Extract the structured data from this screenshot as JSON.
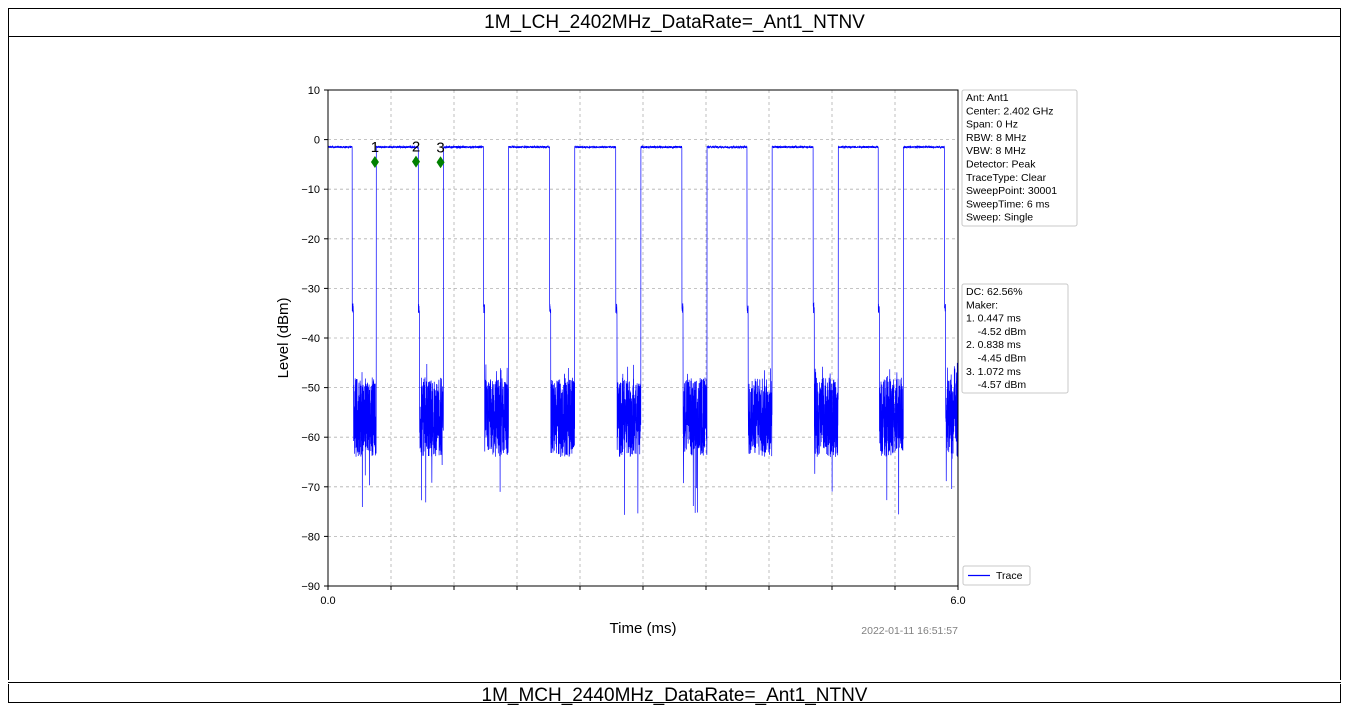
{
  "page": {
    "title": "1M_LCH_2402MHz_DataRate=_Ant1_NTNV",
    "next_title": "1M_MCH_2440MHz_DataRate=_Ant1_NTNV"
  },
  "chart_data": {
    "type": "line",
    "xlabel": "Time (ms)",
    "ylabel": "Level (dBm)",
    "xlim": [
      0.0,
      6.0
    ],
    "ylim": [
      -90,
      10
    ],
    "x_tick_labels": [
      "0.0",
      "6.0"
    ],
    "x_minor_ticks": [
      0.6,
      1.2,
      1.8,
      2.4,
      3.0,
      3.6,
      4.2,
      4.8,
      5.4
    ],
    "y_ticks": [
      10,
      0,
      -10,
      -20,
      -30,
      -40,
      -50,
      -60,
      -70,
      -80,
      -90
    ],
    "grid": true,
    "legend": {
      "placement": "lower-right",
      "entries": [
        "Trace"
      ]
    },
    "trace_color": "#0000ff",
    "marker_color": "#008000",
    "series": [
      {
        "name": "Trace",
        "high_level": -1.5,
        "low_level_range": [
          -64,
          -48
        ],
        "on_intervals": [
          [
            0.0,
            0.23
          ],
          [
            0.46,
            0.86
          ],
          [
            1.1,
            1.48
          ],
          [
            1.72,
            2.11
          ],
          [
            2.35,
            2.74
          ],
          [
            2.98,
            3.37
          ],
          [
            3.61,
            3.99
          ],
          [
            4.23,
            4.62
          ],
          [
            4.86,
            5.24
          ],
          [
            5.48,
            5.87
          ]
        ]
      }
    ],
    "markers": [
      {
        "label": "1",
        "x": 0.447,
        "y": -4.52
      },
      {
        "label": "2",
        "x": 0.838,
        "y": -4.45
      },
      {
        "label": "3",
        "x": 1.072,
        "y": -4.57
      }
    ],
    "info_box_1": [
      "Ant: Ant1",
      "Center: 2.402 GHz",
      "Span: 0 Hz",
      "RBW: 8 MHz",
      "VBW: 8 MHz",
      "Detector: Peak",
      "TraceType: Clear",
      "SweepPoint: 30001",
      "SweepTime: 6 ms",
      "Sweep: Single"
    ],
    "info_box_2": [
      "DC: 62.56%",
      "Maker:",
      "1. 0.447 ms",
      "    -4.52 dBm",
      "2. 0.838 ms",
      "    -4.45 dBm",
      "3. 1.072 ms",
      "    -4.57 dBm"
    ],
    "timestamp": "2022-01-11 16:51:57"
  }
}
